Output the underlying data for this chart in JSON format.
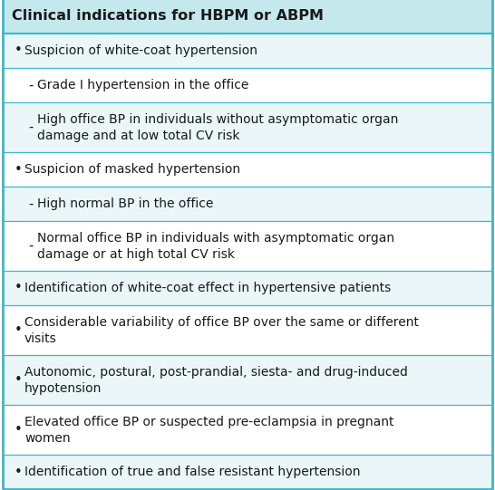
{
  "title": "Clinical indications for HBPM or ABPM",
  "header_bg": "#c5e8ed",
  "alt_row_bg": "#eaf6f8",
  "white_row_bg": "#ffffff",
  "border_color": "#3ab8c8",
  "text_color": "#1a1a1a",
  "rows": [
    {
      "marker": "bullet",
      "lines": [
        "Suspicion of white-coat hypertension"
      ]
    },
    {
      "marker": "dash",
      "lines": [
        "Grade I hypertension in the office"
      ]
    },
    {
      "marker": "dash",
      "lines": [
        "High office BP in individuals without asymptomatic organ",
        "damage and at low total CV risk"
      ]
    },
    {
      "marker": "bullet",
      "lines": [
        "Suspicion of masked hypertension"
      ]
    },
    {
      "marker": "dash",
      "lines": [
        "High normal BP in the office"
      ]
    },
    {
      "marker": "dash",
      "lines": [
        "Normal office BP in individuals with asymptomatic organ",
        "damage or at high total CV risk"
      ]
    },
    {
      "marker": "bullet",
      "lines": [
        "Identification of white-coat effect in hypertensive patients"
      ]
    },
    {
      "marker": "bullet",
      "lines": [
        "Considerable variability of office BP over the same or different",
        "visits"
      ]
    },
    {
      "marker": "bullet",
      "lines": [
        "Autonomic, postural, post-prandial, siesta- and drug-induced",
        "hypotension"
      ]
    },
    {
      "marker": "bullet",
      "lines": [
        "Elevated office BP or suspected pre-eclampsia in pregnant",
        "women"
      ]
    },
    {
      "marker": "bullet",
      "lines": [
        "Identification of true and false resistant hypertension"
      ]
    }
  ]
}
